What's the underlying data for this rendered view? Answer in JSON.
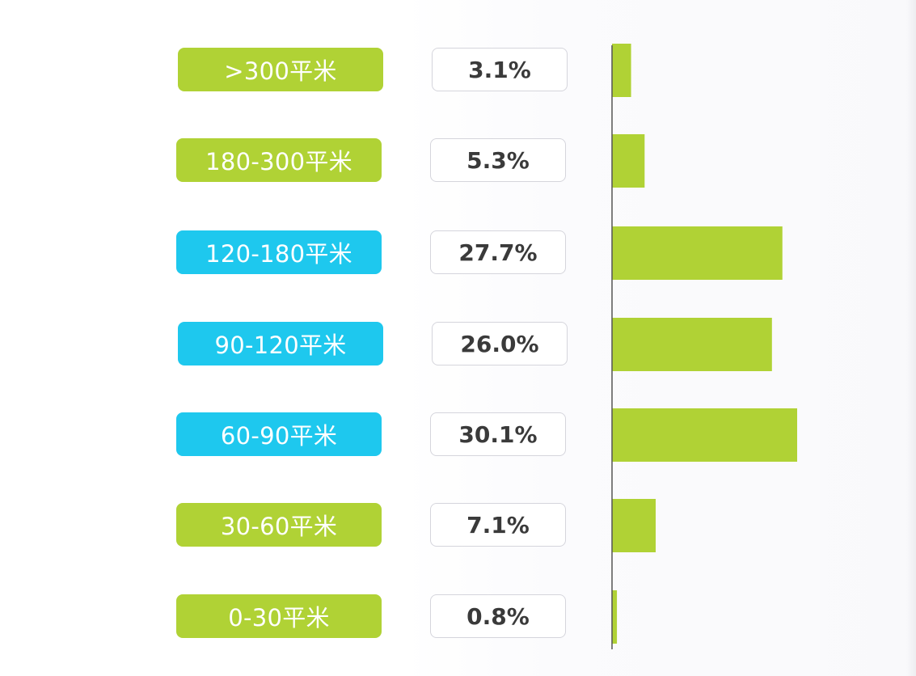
{
  "chart_data": {
    "type": "bar",
    "orientation": "horizontal",
    "categories": [
      ">300平米",
      "180-300平米",
      "120-180平米",
      "90-120平米",
      "60-90平米",
      "30-60平米",
      "0-30平米"
    ],
    "values": [
      3.1,
      5.3,
      27.7,
      26.0,
      30.1,
      7.1,
      0.8
    ],
    "value_labels": [
      "3.1%",
      "5.3%",
      "27.7%",
      "26.0%",
      "30.1%",
      "7.1%",
      "0.8%"
    ],
    "highlighted": [
      false,
      false,
      true,
      true,
      true,
      false,
      false
    ],
    "title": "",
    "xlabel": "",
    "ylabel": "",
    "xlim": [
      0,
      30.1
    ],
    "grid": false,
    "legend": "none"
  },
  "colors": {
    "green": "#b0d235",
    "blue": "#1ec8ee",
    "bar": "#b0d235",
    "axis": "#555555",
    "value_text": "#3a3a3a",
    "box_border": "#d5d5dc"
  }
}
